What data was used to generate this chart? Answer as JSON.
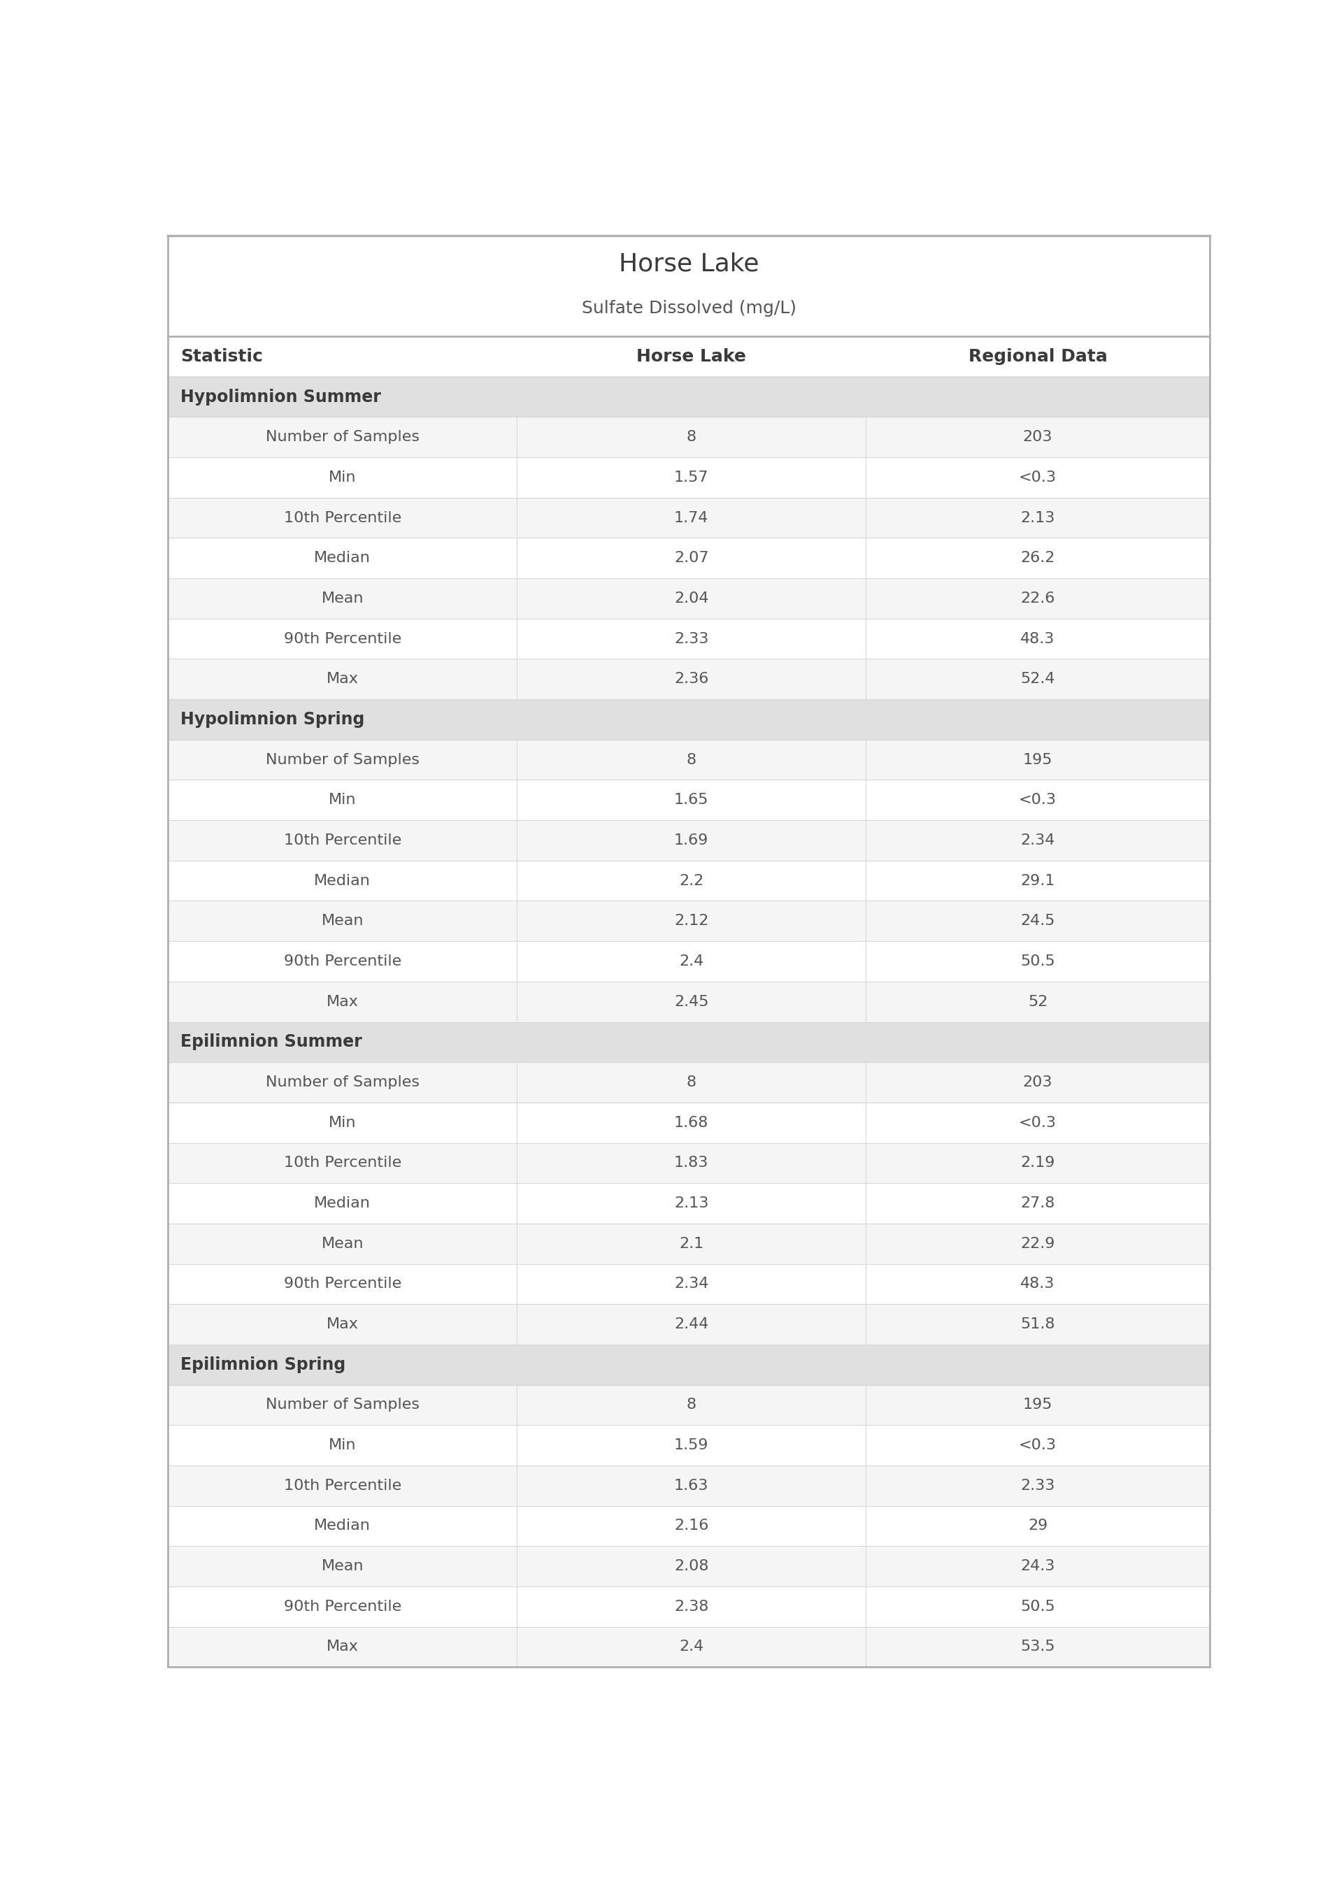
{
  "title": "Horse Lake",
  "subtitle": "Sulfate Dissolved (mg/L)",
  "col_headers": [
    "Statistic",
    "Horse Lake",
    "Regional Data"
  ],
  "sections": [
    {
      "section_label": "Hypolimnion Summer",
      "rows": [
        [
          "Number of Samples",
          "8",
          "203"
        ],
        [
          "Min",
          "1.57",
          "<0.3"
        ],
        [
          "10th Percentile",
          "1.74",
          "2.13"
        ],
        [
          "Median",
          "2.07",
          "26.2"
        ],
        [
          "Mean",
          "2.04",
          "22.6"
        ],
        [
          "90th Percentile",
          "2.33",
          "48.3"
        ],
        [
          "Max",
          "2.36",
          "52.4"
        ]
      ]
    },
    {
      "section_label": "Hypolimnion Spring",
      "rows": [
        [
          "Number of Samples",
          "8",
          "195"
        ],
        [
          "Min",
          "1.65",
          "<0.3"
        ],
        [
          "10th Percentile",
          "1.69",
          "2.34"
        ],
        [
          "Median",
          "2.2",
          "29.1"
        ],
        [
          "Mean",
          "2.12",
          "24.5"
        ],
        [
          "90th Percentile",
          "2.4",
          "50.5"
        ],
        [
          "Max",
          "2.45",
          "52"
        ]
      ]
    },
    {
      "section_label": "Epilimnion Summer",
      "rows": [
        [
          "Number of Samples",
          "8",
          "203"
        ],
        [
          "Min",
          "1.68",
          "<0.3"
        ],
        [
          "10th Percentile",
          "1.83",
          "2.19"
        ],
        [
          "Median",
          "2.13",
          "27.8"
        ],
        [
          "Mean",
          "2.1",
          "22.9"
        ],
        [
          "90th Percentile",
          "2.34",
          "48.3"
        ],
        [
          "Max",
          "2.44",
          "51.8"
        ]
      ]
    },
    {
      "section_label": "Epilimnion Spring",
      "rows": [
        [
          "Number of Samples",
          "8",
          "195"
        ],
        [
          "Min",
          "1.59",
          "<0.3"
        ],
        [
          "10th Percentile",
          "1.63",
          "2.33"
        ],
        [
          "Median",
          "2.16",
          "29"
        ],
        [
          "Mean",
          "2.08",
          "24.3"
        ],
        [
          "90th Percentile",
          "2.38",
          "50.5"
        ],
        [
          "Max",
          "2.4",
          "53.5"
        ]
      ]
    }
  ],
  "col_split1": 0.335,
  "col_split2": 0.67,
  "bg_white": "#ffffff",
  "bg_light_gray": "#ebebeb",
  "bg_section": "#e0e0e0",
  "bg_row_alt": "#f5f5f5",
  "divider_heavy": "#b0b0b0",
  "divider_light": "#d8d8d8",
  "text_dark": "#3a3a3a",
  "text_medium": "#555555",
  "text_header_col": "#3a3a3a",
  "title_fontsize": 26,
  "subtitle_fontsize": 18,
  "header_fontsize": 18,
  "section_fontsize": 17,
  "cell_fontsize": 16
}
